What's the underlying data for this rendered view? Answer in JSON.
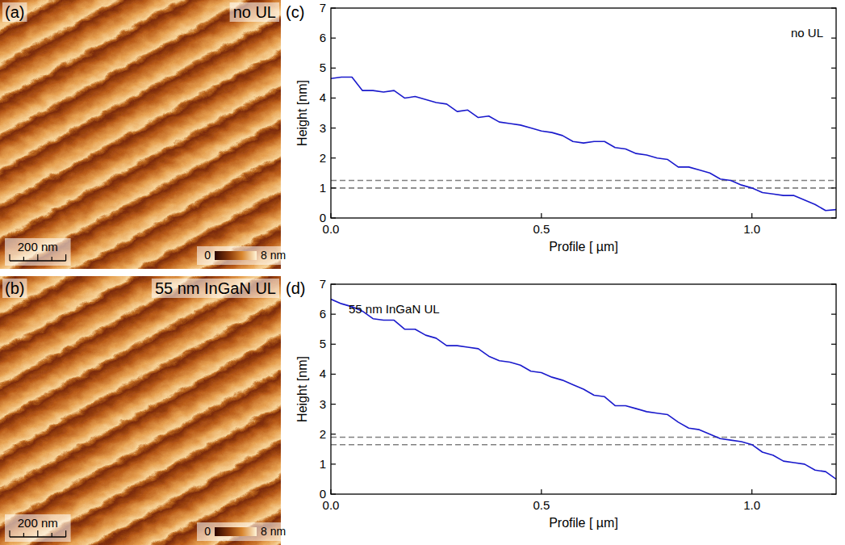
{
  "chart_data": [
    {
      "type": "heatmap",
      "panel_label": "(a)",
      "title": "no UL",
      "xlim": [
        0,
        1000
      ],
      "scale_bar": {
        "value": 200,
        "label": "200 nm"
      },
      "colorbar_range": [
        0,
        8
      ],
      "colorbar_ticks": [
        0,
        {
          "value": 8,
          "label": "8 nm"
        }
      ]
    },
    {
      "type": "heatmap",
      "panel_label": "(b)",
      "title": "55 nm InGaN UL",
      "xlim": [
        0,
        1000
      ],
      "scale_bar": {
        "value": 200,
        "label": "200 nm"
      },
      "colorbar_range": [
        0,
        8
      ],
      "colorbar_ticks": [
        0,
        {
          "value": 8,
          "label": "8 nm"
        }
      ]
    },
    {
      "type": "line",
      "panel_label": "(c)",
      "annotation": "no UL",
      "xlabel": "Profile [ µm]",
      "ylabel": "Height [nm]",
      "xlim": [
        0,
        1.2
      ],
      "ylim": [
        0,
        7
      ],
      "xticks": [
        {
          "value": 0,
          "label": "0.0"
        },
        {
          "value": 0.5,
          "label": "0.5"
        },
        {
          "value": 1,
          "label": "1.0"
        }
      ],
      "yticks": [
        0,
        1,
        2,
        3,
        4,
        5,
        6,
        7
      ],
      "hlines": [
        1.0,
        1.25
      ],
      "color": "#1a1acc",
      "x": [
        0,
        0.025,
        0.05,
        0.075,
        0.1,
        0.125,
        0.15,
        0.175,
        0.2,
        0.225,
        0.25,
        0.275,
        0.3,
        0.325,
        0.35,
        0.375,
        0.4,
        0.425,
        0.45,
        0.475,
        0.5,
        0.525,
        0.55,
        0.575,
        0.6,
        0.625,
        0.65,
        0.675,
        0.7,
        0.725,
        0.75,
        0.775,
        0.8,
        0.825,
        0.85,
        0.875,
        0.9,
        0.925,
        0.95,
        0.975,
        1.0,
        1.025,
        1.05,
        1.075,
        1.1,
        1.125,
        1.15,
        1.175,
        1.2
      ],
      "values": [
        4.65,
        4.7,
        4.7,
        4.25,
        4.25,
        4.2,
        4.25,
        4.0,
        4.05,
        3.95,
        3.85,
        3.8,
        3.55,
        3.6,
        3.35,
        3.4,
        3.2,
        3.15,
        3.1,
        3.0,
        2.9,
        2.85,
        2.75,
        2.55,
        2.5,
        2.55,
        2.55,
        2.35,
        2.3,
        2.15,
        2.1,
        2.0,
        1.95,
        1.7,
        1.7,
        1.6,
        1.5,
        1.3,
        1.25,
        1.1,
        1.0,
        0.85,
        0.8,
        0.75,
        0.75,
        0.6,
        0.45,
        0.25,
        0.28
      ]
    },
    {
      "type": "line",
      "panel_label": "(d)",
      "annotation": "55 nm InGaN UL",
      "xlabel": "Profile [ µm]",
      "ylabel": "Height [nm]",
      "xlim": [
        0,
        1.2
      ],
      "ylim": [
        0,
        7
      ],
      "xticks": [
        {
          "value": 0,
          "label": "0.0"
        },
        {
          "value": 0.5,
          "label": "0.5"
        },
        {
          "value": 1,
          "label": "1.0"
        }
      ],
      "yticks": [
        0,
        1,
        2,
        3,
        4,
        5,
        6,
        7
      ],
      "hlines": [
        1.65,
        1.9
      ],
      "color": "#1a1acc",
      "x": [
        0,
        0.025,
        0.05,
        0.075,
        0.1,
        0.125,
        0.15,
        0.175,
        0.2,
        0.225,
        0.25,
        0.275,
        0.3,
        0.325,
        0.35,
        0.375,
        0.4,
        0.425,
        0.45,
        0.475,
        0.5,
        0.525,
        0.55,
        0.575,
        0.6,
        0.625,
        0.65,
        0.675,
        0.7,
        0.725,
        0.75,
        0.775,
        0.8,
        0.825,
        0.85,
        0.875,
        0.9,
        0.925,
        0.95,
        0.975,
        1.0,
        1.025,
        1.05,
        1.075,
        1.1,
        1.125,
        1.15,
        1.175,
        1.2
      ],
      "values": [
        6.5,
        6.35,
        6.25,
        6.1,
        5.85,
        5.8,
        5.8,
        5.5,
        5.5,
        5.3,
        5.2,
        4.95,
        4.95,
        4.9,
        4.85,
        4.6,
        4.45,
        4.4,
        4.3,
        4.1,
        4.05,
        3.9,
        3.8,
        3.65,
        3.5,
        3.3,
        3.25,
        2.95,
        2.95,
        2.85,
        2.75,
        2.7,
        2.65,
        2.4,
        2.2,
        2.15,
        2.0,
        1.85,
        1.8,
        1.75,
        1.65,
        1.4,
        1.3,
        1.1,
        1.05,
        1.0,
        0.8,
        0.75,
        0.5
      ]
    }
  ]
}
